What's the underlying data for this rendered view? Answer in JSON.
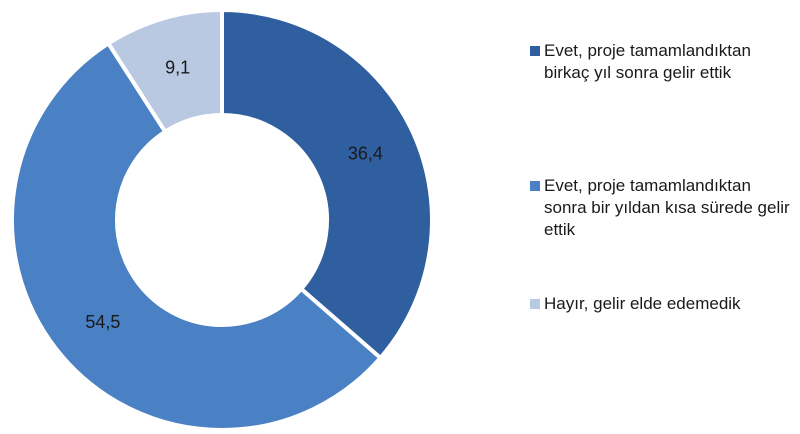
{
  "chart_data": {
    "type": "donut",
    "categories": [
      "Evet, proje tamamlandıktan birkaç yıl sonra gelir ettik",
      "Evet, proje tamamlandıktan sonra bir yıldan kısa sürede gelir ettik",
      "Hayır, gelir elde edemedik"
    ],
    "values": [
      36.4,
      54.5,
      9.1
    ],
    "value_labels": [
      "36,4",
      "54,5",
      "9,1"
    ],
    "colors": [
      "#2f5f9f",
      "#4a80c4",
      "#b9c9e2"
    ],
    "legend": "right"
  }
}
